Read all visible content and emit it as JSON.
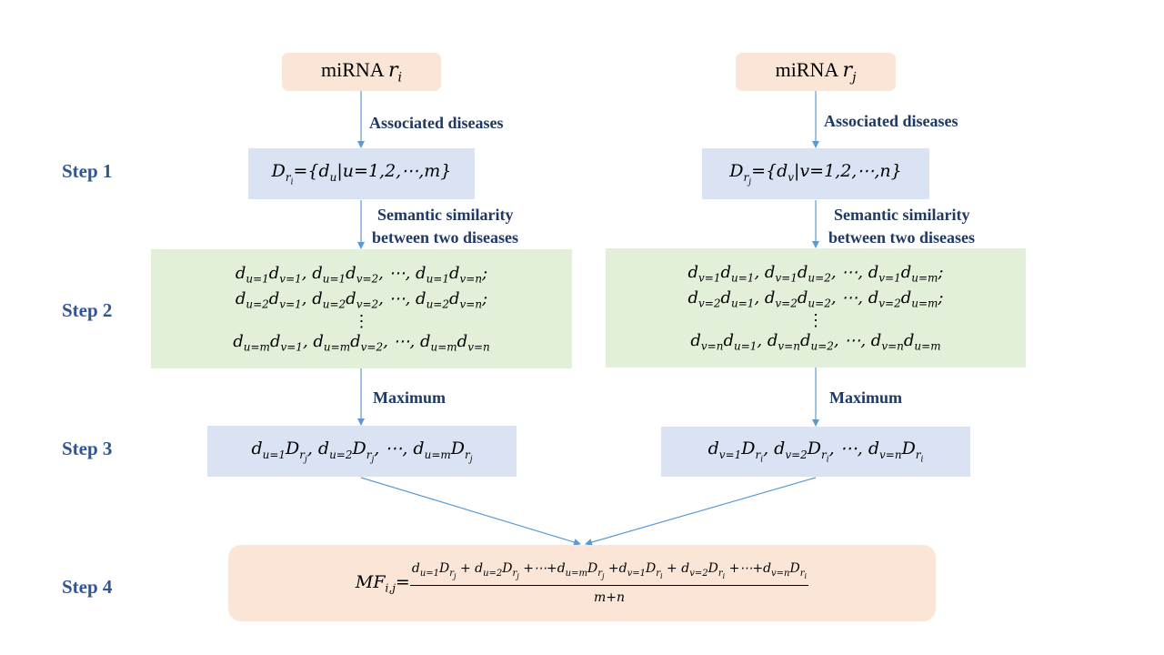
{
  "nodes": {
    "mirna_i": {
      "label": "miRNA",
      "var": "r",
      "sub": "i"
    },
    "mirna_j": {
      "label": "miRNA",
      "var": "r",
      "sub": "j"
    }
  },
  "edges": {
    "associated_left": "Associated diseases",
    "associated_right": "Associated diseases",
    "semantic_left": [
      "Semantic similarity",
      "between two diseases"
    ],
    "semantic_right": [
      "Semantic similarity",
      "between two diseases"
    ],
    "maximum_left": "Maximum",
    "maximum_right": "Maximum"
  },
  "steps": [
    "Step 1",
    "Step 2",
    "Step 3",
    "Step 4"
  ],
  "colors": {
    "orange_fill": "#fbe5d6",
    "blue_fill": "#dae3f3",
    "green_fill": "#e2f0d9",
    "arrow": "#5b9bd5",
    "step_text": "#2f5597",
    "edge_text": "#1f3864"
  }
}
